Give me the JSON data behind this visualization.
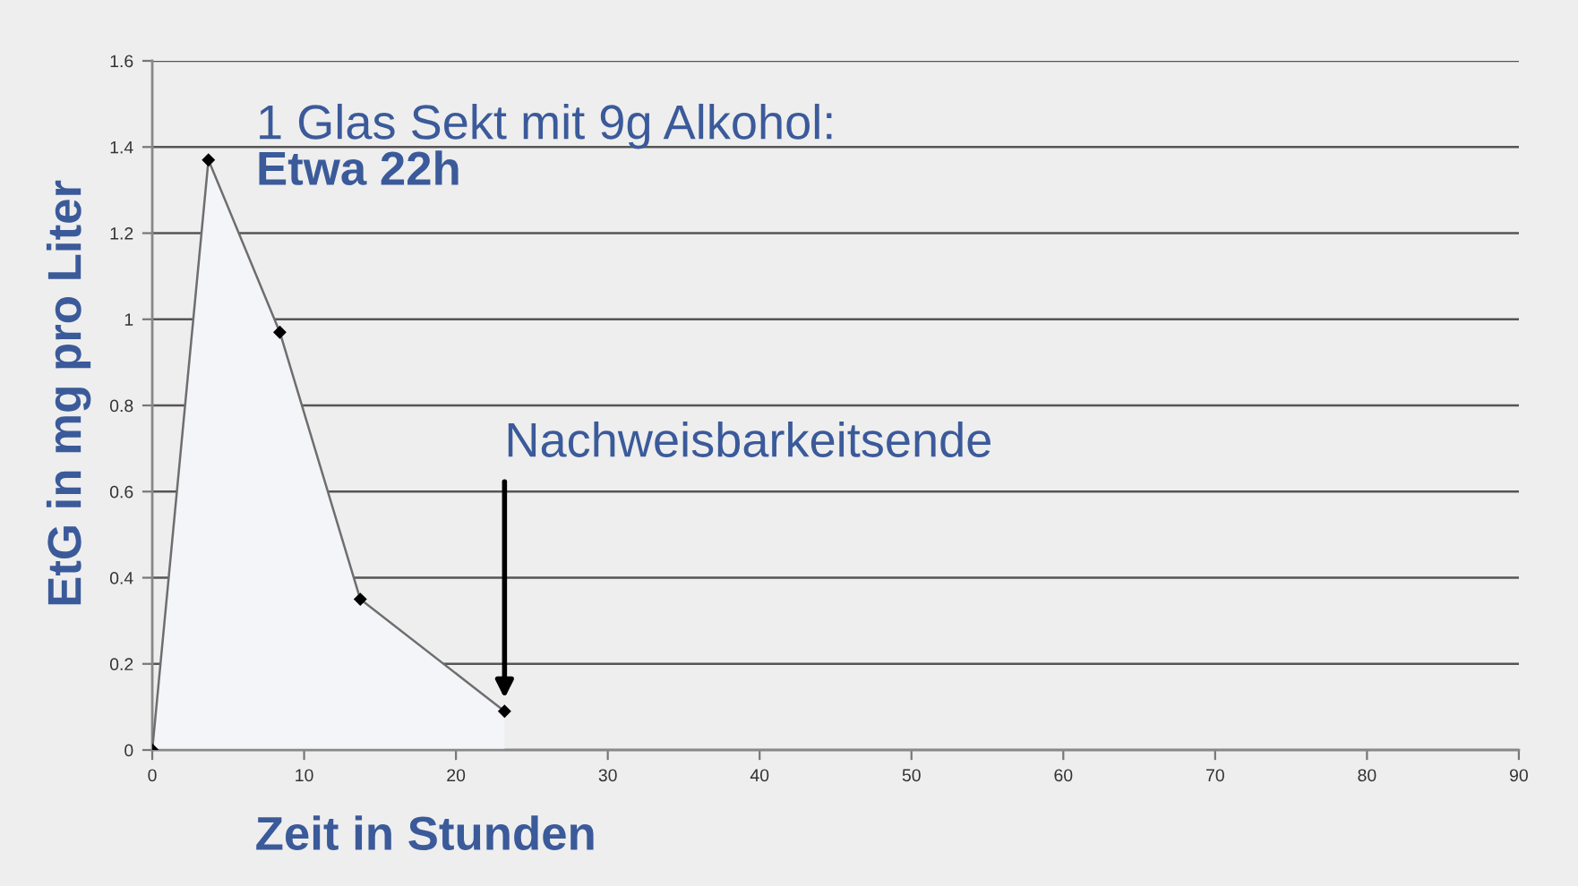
{
  "chart_data": {
    "type": "area",
    "title": "1 Glas Sekt mit 9g Alkohol:",
    "subtitle": "Etwa 22h",
    "xlabel": "Zeit in Stunden",
    "ylabel": "EtG in mg pro Liter",
    "series": [
      {
        "color": "#f4f5f9",
        "x": [
          0,
          3.7,
          8.4,
          13.7,
          23.2
        ],
        "values": [
          0,
          1.37,
          0.97,
          0.35,
          0.09
        ]
      }
    ],
    "xlim": [
      0,
      90
    ],
    "xticks": [
      0,
      10,
      20,
      30,
      40,
      50,
      60,
      70,
      80,
      90
    ],
    "ylim": [
      0,
      1.6
    ],
    "yticks": [
      0,
      0.2,
      0.4,
      0.6,
      0.8,
      1,
      1.2,
      1.4,
      1.6
    ],
    "annotations": [
      {
        "text": "Nachweisbarkeitsende",
        "x": 23.2,
        "y": 0.12
      }
    ],
    "grid": "y",
    "marker": "diamond",
    "line_style": "solid",
    "legend": false
  }
}
